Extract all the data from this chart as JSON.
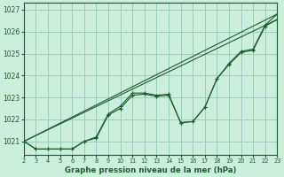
{
  "title": "Graphe pression niveau de la mer (hPa)",
  "background_color": "#cceedd",
  "grid_color": "#99ccbb",
  "line_color": "#1a5c2a",
  "xlim": [
    2,
    23
  ],
  "ylim": [
    1020.4,
    1027.3
  ],
  "yticks": [
    1021,
    1022,
    1023,
    1024,
    1025,
    1026,
    1027
  ],
  "xticks": [
    2,
    3,
    4,
    5,
    6,
    7,
    8,
    9,
    10,
    11,
    12,
    13,
    14,
    15,
    16,
    17,
    18,
    19,
    20,
    21,
    22,
    23
  ],
  "x_data": [
    2,
    3,
    4,
    5,
    6,
    7,
    8,
    9,
    10,
    11,
    12,
    13,
    14,
    15,
    16,
    17,
    18,
    19,
    20,
    21,
    22,
    23
  ],
  "line_wavy1": [
    1021.0,
    1020.65,
    1020.65,
    1020.65,
    1020.65,
    1021.0,
    1021.15,
    1022.2,
    1022.5,
    1023.1,
    1023.15,
    1023.05,
    1023.1,
    1021.85,
    1021.9,
    1022.55,
    1023.85,
    1024.5,
    1025.05,
    1025.15,
    1026.25,
    1026.55
  ],
  "line_wavy2": [
    1021.0,
    1020.65,
    1020.65,
    1020.65,
    1020.65,
    1021.0,
    1021.2,
    1022.25,
    1022.6,
    1023.2,
    1023.2,
    1023.1,
    1023.15,
    1021.85,
    1021.9,
    1022.55,
    1023.85,
    1024.55,
    1025.1,
    1025.2,
    1026.3,
    1026.8
  ],
  "trend1_x": [
    2,
    23
  ],
  "trend1_y": [
    1021.0,
    1026.55
  ],
  "trend2_x": [
    2,
    23
  ],
  "trend2_y": [
    1021.0,
    1026.8
  ]
}
